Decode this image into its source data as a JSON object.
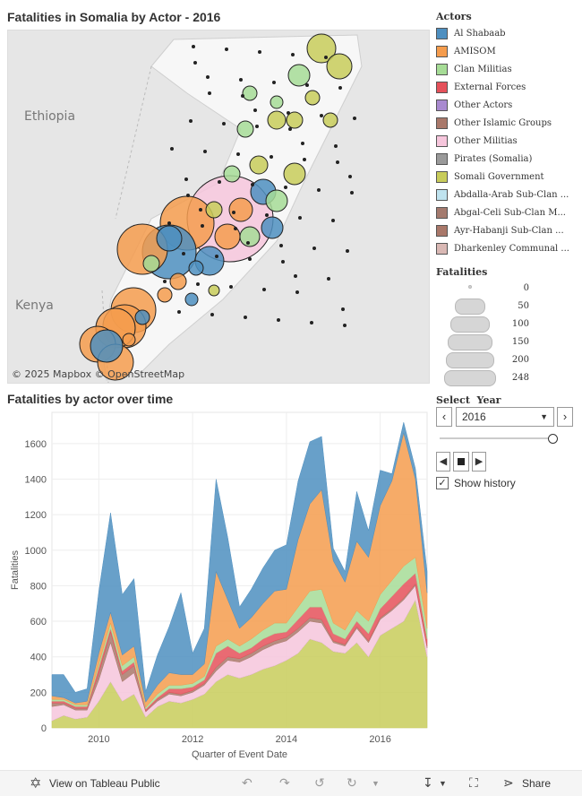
{
  "map_title": "Fatalities in Somalia by Actor - 2016",
  "map_labels": {
    "country1": "Ethiopia",
    "country2": "Kenya",
    "attribution": "© 2025 Mapbox  © OpenStreetMap"
  },
  "legend": {
    "title": "Actors",
    "items": [
      {
        "label": "Al Shabaab",
        "color": "#4e8fc0"
      },
      {
        "label": "AMISOM",
        "color": "#f59c4d"
      },
      {
        "label": "Clan Militias",
        "color": "#a6dc96"
      },
      {
        "label": "External Forces",
        "color": "#e5515a"
      },
      {
        "label": "Other Actors",
        "color": "#a98ad0"
      },
      {
        "label": "Other Islamic Groups",
        "color": "#a9786a"
      },
      {
        "label": "Other Militias",
        "color": "#f6c6dc"
      },
      {
        "label": "Pirates (Somalia)",
        "color": "#9a9a9a"
      },
      {
        "label": "Somali Government",
        "color": "#c8cc5a"
      },
      {
        "label": "Abdalla-Arab Sub-Clan ...",
        "color": "#bfe3ef"
      },
      {
        "label": "Abgal-Celi Sub-Clan M...",
        "color": "#a47a6e"
      },
      {
        "label": "Ayr-Habanji Sub-Clan ...",
        "color": "#a9786a"
      },
      {
        "label": "Dharkenley Communal ...",
        "color": "#d9b8b4"
      }
    ]
  },
  "size_legend": {
    "title": "Fatalities",
    "labels": [
      "0",
      "50",
      "100",
      "150",
      "200",
      "248"
    ]
  },
  "chart_title": "Fatalities by actor over time",
  "controls": {
    "select_label": "Select  Year",
    "year": "2016",
    "show_history": "Show history"
  },
  "footer": {
    "view_label": "View on Tableau Public",
    "share_label": "Share"
  },
  "chart_data": {
    "type": "area",
    "title": "Fatalities by actor over time",
    "xlabel": "Quarter of Event Date",
    "ylabel": "Fatalities",
    "xlim": [
      2009.0,
      2017.0
    ],
    "ylim": [
      0,
      1700
    ],
    "x_ticks": [
      "2010",
      "2012",
      "2014",
      "2016"
    ],
    "y_ticks": [
      "0",
      "200",
      "400",
      "600",
      "800",
      "1000",
      "1200",
      "1400",
      "1600"
    ],
    "x": [
      2009.0,
      2009.25,
      2009.5,
      2009.75,
      2010.0,
      2010.25,
      2010.5,
      2010.75,
      2011.0,
      2011.25,
      2011.5,
      2011.75,
      2012.0,
      2012.25,
      2012.5,
      2012.75,
      2013.0,
      2013.25,
      2013.5,
      2013.75,
      2014.0,
      2014.25,
      2014.5,
      2014.75,
      2015.0,
      2015.25,
      2015.5,
      2015.75,
      2016.0,
      2016.25,
      2016.5,
      2016.75,
      2017.0
    ],
    "series": [
      {
        "name": "Somali Government",
        "color": "#c8cc5a",
        "values": [
          40,
          70,
          50,
          60,
          150,
          260,
          150,
          190,
          60,
          120,
          150,
          140,
          160,
          190,
          260,
          300,
          280,
          300,
          330,
          350,
          380,
          420,
          500,
          480,
          430,
          420,
          480,
          400,
          520,
          560,
          600,
          720,
          400
        ]
      },
      {
        "name": "Pirates (Somalia)",
        "color": "#9a9a9a",
        "values": [
          0,
          0,
          0,
          0,
          0,
          0,
          0,
          0,
          0,
          0,
          0,
          0,
          0,
          0,
          0,
          0,
          0,
          0,
          0,
          0,
          0,
          0,
          0,
          0,
          0,
          0,
          0,
          0,
          0,
          0,
          0,
          0,
          0
        ]
      },
      {
        "name": "Other Militias",
        "color": "#f6c6dc",
        "values": [
          80,
          60,
          50,
          40,
          120,
          220,
          110,
          120,
          30,
          30,
          40,
          40,
          40,
          50,
          60,
          80,
          90,
          100,
          110,
          120,
          110,
          120,
          100,
          110,
          50,
          40,
          80,
          80,
          90,
          100,
          120,
          80,
          50
        ]
      },
      {
        "name": "Other Islamic Groups",
        "color": "#a9786a",
        "values": [
          20,
          10,
          10,
          10,
          40,
          60,
          40,
          40,
          5,
          10,
          10,
          10,
          10,
          10,
          20,
          20,
          20,
          20,
          20,
          20,
          20,
          20,
          20,
          20,
          10,
          10,
          10,
          10,
          10,
          10,
          10,
          10,
          10
        ]
      },
      {
        "name": "External Forces",
        "color": "#e5515a",
        "values": [
          10,
          10,
          10,
          10,
          30,
          20,
          20,
          20,
          10,
          10,
          20,
          30,
          20,
          20,
          80,
          60,
          30,
          30,
          40,
          40,
          30,
          50,
          60,
          70,
          40,
          30,
          30,
          40,
          50,
          70,
          80,
          60,
          40
        ]
      },
      {
        "name": "Clan Militias",
        "color": "#a6dc96",
        "values": [
          10,
          10,
          10,
          10,
          20,
          30,
          30,
          30,
          10,
          20,
          20,
          20,
          20,
          20,
          40,
          40,
          40,
          50,
          50,
          60,
          50,
          70,
          90,
          100,
          60,
          50,
          60,
          70,
          80,
          90,
          100,
          90,
          60
        ]
      },
      {
        "name": "AMISOM",
        "color": "#f59c4d",
        "values": [
          20,
          10,
          10,
          20,
          60,
          60,
          60,
          60,
          30,
          50,
          70,
          60,
          50,
          70,
          420,
          220,
          100,
          120,
          150,
          180,
          190,
          380,
          490,
          560,
          350,
          270,
          390,
          360,
          500,
          560,
          750,
          440,
          200
        ]
      },
      {
        "name": "Al Shabaab",
        "color": "#4e8fc0",
        "values": [
          120,
          130,
          60,
          70,
          350,
          560,
          340,
          380,
          60,
          170,
          260,
          460,
          120,
          200,
          520,
          350,
          120,
          160,
          200,
          230,
          250,
          330,
          350,
          300,
          70,
          60,
          280,
          150,
          200,
          40,
          60,
          60,
          120
        ]
      }
    ]
  }
}
